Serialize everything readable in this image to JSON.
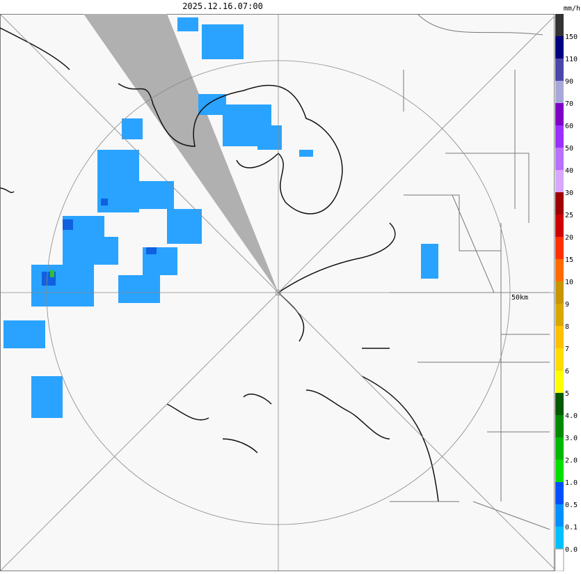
{
  "header": {
    "timestamp": "2025.12.16.07:00",
    "unit": "mm/h"
  },
  "map": {
    "range_label": "50km"
  },
  "legend": {
    "labels": [
      "150",
      "110",
      "90",
      "70",
      "60",
      "50",
      "40",
      "30",
      "25",
      "20",
      "15",
      "10",
      "9",
      "8",
      "7",
      "6",
      "5",
      "4.0",
      "3.0",
      "2.0",
      "1.0",
      "0.5",
      "0.1",
      "0.0"
    ]
  }
}
